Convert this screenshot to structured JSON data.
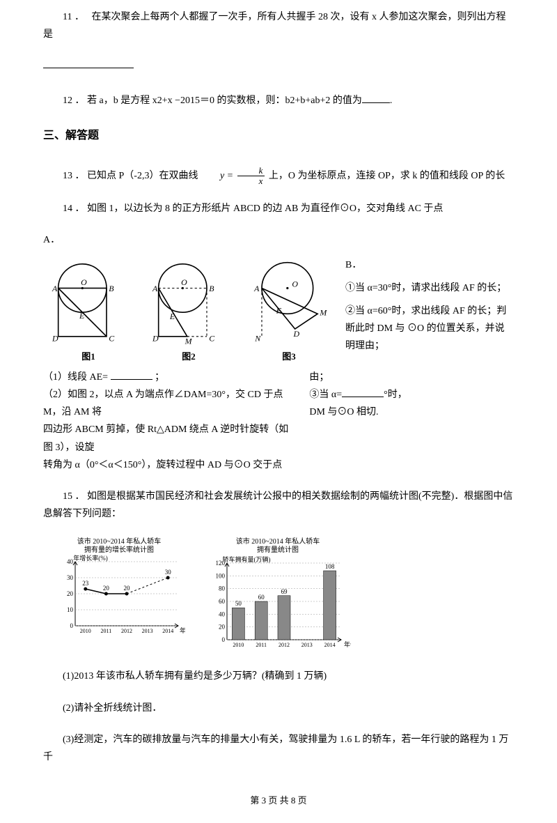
{
  "q11": {
    "num": "11",
    "sep": "．",
    "text": "在某次聚会上每两个人都握了一次手，所有人共握手 28 次，设有 x 人参加这次聚会，则列出方程是"
  },
  "q12": {
    "num": "12",
    "sep": "．",
    "prefix": "若 a，b 是方程 x2+x −2015＝0 的实数根，则：b2+b+ab+2 的值为",
    "suffix": "."
  },
  "section3": "三、解答题",
  "q13": {
    "num": "13",
    "sep": "．",
    "part1": "已知点 P（-2,3）在双曲线",
    "formula_y": "y",
    "formula_eq": "=",
    "frac_num": "k",
    "frac_den": "x",
    "part2": "上，O 为坐标原点，连接 OP，求 k 的值和线段 OP 的长"
  },
  "q14": {
    "num": "14",
    "sep": "．",
    "intro": "如图 1，以边长为 8 的正方形纸片 ABCD 的边 AB 为直径作⊙O，交对角线 AC 于点",
    "letterA": "A．",
    "letterB": "B．",
    "fig1_label": "图1",
    "fig2_label": "图2",
    "fig3_label": "图3",
    "right1": "①当 α=30°时，请求出线段 AF 的长；",
    "right2": "②当 α=60°时，求出线段 AF 的长；判断此时 DM 与 ⊙O 的位置关系，并说明理由；",
    "sub1_label": "（1）线段 AE= ",
    "sub1_after": "；",
    "sub_right_after": "由；",
    "bottom_left_l1": "（2）如图 2，以点 A 为端点作∠DAM=30°，交 CD 于点 M，沿 AM 将",
    "bottom_left_l2": "四边形 ABCM 剪掉，使 Rt△ADM 绕点 A 逆时针旋转（如图 3），设旋",
    "bottom_left_l3": "转角为 α（0°＜α＜150°），旋转过程中 AD 与⊙O 交于点",
    "bottom_right_l1": "③当 α=",
    "bottom_right_l1b": "°时，",
    "bottom_right_l2": "DM 与⊙O 相切."
  },
  "q15": {
    "num": "15",
    "sep": "．",
    "text": "如图是根据某市国民经济和社会发展统计公报中的相关数据绘制的两幅统计图(不完整)．根据图中信息解答下列问题：",
    "sub1": "(1)2013 年该市私人轿车拥有量约是多少万辆？(精确到 1 万辆)",
    "sub2": "(2)请补全折线统计图．",
    "sub3": "(3)经测定，汽车的碳排放量与汽车的排量大小有关，驾驶排量为 1.6 L 的轿车，若一年行驶的路程为 1 万千"
  },
  "chart1": {
    "title1": "该市 2010~2014 年私人轿车",
    "title2": "拥有量的增长率统计图",
    "ylabel": "年增长率(%)",
    "xlabel": "年份",
    "years": [
      "2010",
      "2011",
      "2012",
      "2013",
      "2014"
    ],
    "yticks": [
      "0",
      "10",
      "20",
      "30",
      "40"
    ],
    "values": [
      23,
      20,
      20,
      null,
      30
    ],
    "labels": [
      "23",
      "20",
      "20",
      "",
      "30"
    ],
    "ymax": 40,
    "line_color": "#000000",
    "grid_color": "#999999",
    "bg": "#ffffff"
  },
  "chart2": {
    "title1": "该市 2010~2014 年私人轿车",
    "title2": "拥有量统计图",
    "ylabel": "轿车拥有量(万辆)",
    "xlabel": "年份",
    "years": [
      "2010",
      "2011",
      "2012",
      "2013",
      "2014"
    ],
    "yticks": [
      "0",
      "20",
      "40",
      "60",
      "80",
      "100",
      "120"
    ],
    "values": [
      50,
      60,
      69,
      null,
      108
    ],
    "labels": [
      "50",
      "60",
      "69",
      "",
      "108"
    ],
    "ymax": 120,
    "bar_color": "#888888",
    "grid_color": "#999999",
    "bg": "#ffffff"
  },
  "footer": {
    "prefix": "第 ",
    "page": "3",
    "mid": " 页 共 ",
    "total": "8",
    "suffix": " 页"
  },
  "fig": {
    "A": "A",
    "B": "B",
    "C": "C",
    "D": "D",
    "E": "E",
    "F": "F",
    "M": "M",
    "N": "N",
    "O": "O"
  }
}
